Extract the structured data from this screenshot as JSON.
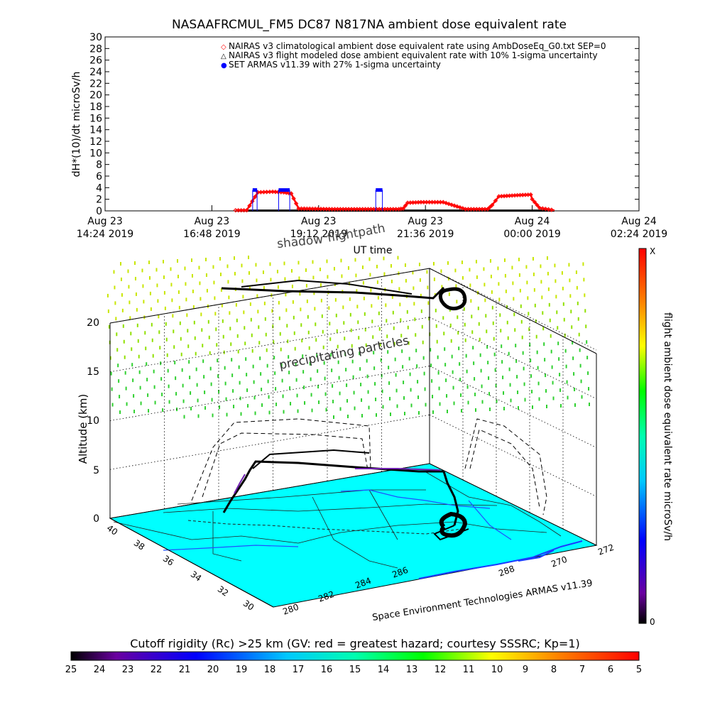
{
  "chart_data": [
    {
      "type": "line",
      "title": "NASAAFRCMUL_FM5 DC87 N817NA ambient dose equivalent rate",
      "ylabel": "dH*(10)/dt microSv/h",
      "xlabel": "UT time",
      "ylim": [
        0,
        30
      ],
      "yticks": [
        "30",
        "28",
        "26",
        "24",
        "22",
        "20",
        "18",
        "16",
        "14",
        "12",
        "10",
        "8",
        "6",
        "4",
        "2",
        "0"
      ],
      "xticks": [
        {
          "l1": "Aug 23",
          "l2": "14:24 2019"
        },
        {
          "l1": "Aug 23",
          "l2": "16:48 2019"
        },
        {
          "l1": "Aug 23",
          "l2": "19:12 2019"
        },
        {
          "l1": "Aug 23",
          "l2": "21:36 2019"
        },
        {
          "l1": "Aug 24",
          "l2": "00:00 2019"
        },
        {
          "l1": "Aug 24",
          "l2": "02:24 2019"
        }
      ],
      "legend": [
        {
          "marker": "◇",
          "color": "#ff0000",
          "text": "NAIRAS v3 climatological ambient dose equivalent rate using AmbDoseEq_G0.txt SEP=0"
        },
        {
          "marker": "△",
          "color": "#000000",
          "text": "NAIRAS v3 flight modeled dose ambient equivalent rate with 10% 1-sigma uncertainty"
        },
        {
          "marker": "●",
          "color": "#0000ff",
          "text": "SET ARMAS v11.39 with 27% 1-sigma uncertainty"
        }
      ],
      "legend_position": "top-right",
      "series": [
        {
          "name": "NAIRAS v3 climatological ambient dose equivalent rate using AmbDoseEq_G0.txt SEP=0",
          "color": "#ff0000",
          "x": [
            "17:20",
            "17:35",
            "17:50",
            "18:10",
            "18:25",
            "18:35",
            "18:45",
            "19:30",
            "20:30",
            "21:00",
            "21:06",
            "21:12",
            "21:30",
            "22:00",
            "22:30",
            "23:00",
            "23:06",
            "23:15",
            "23:40",
            "23:58",
            "24:00",
            "24:10",
            "24:30"
          ],
          "y": [
            0.1,
            0.1,
            3.2,
            3.3,
            3.2,
            3.0,
            0.4,
            0.3,
            0.3,
            0.3,
            0.4,
            1.4,
            1.5,
            1.5,
            0.3,
            0.3,
            1.0,
            2.5,
            2.7,
            2.8,
            2.0,
            0.5,
            0.1
          ]
        },
        {
          "name": "NAIRAS v3 flight modeled dose ambient equivalent rate with 10% 1-sigma uncertainty",
          "color": "#000000",
          "x": [
            "17:20",
            "24:30"
          ],
          "y": [
            0.05,
            0.05
          ]
        },
        {
          "name": "SET ARMAS v11.39 with 27% 1-sigma uncertainty",
          "color": "#0000ff",
          "x": [
            "17:43",
            "17:49",
            "18:18",
            "18:33",
            "20:29",
            "20:38"
          ],
          "y": [
            3.6,
            3.6,
            3.6,
            3.6,
            3.6,
            3.6
          ]
        }
      ]
    },
    {
      "type": "scatter",
      "zlabel": "Altitude (km)",
      "zticks": [
        "0",
        "5",
        "10",
        "15",
        "20"
      ],
      "lat_ticks": [
        "40",
        "38",
        "36",
        "34",
        "32",
        "30"
      ],
      "lon_ticks": [
        "280",
        "282",
        "284",
        "286",
        "288",
        "270",
        "272"
      ],
      "annotations": {
        "shadow": "shadow",
        "flightpath": "flightpath",
        "particles": "precipitating particles",
        "credit": "Space Environment Technologies ARMAS v11.39"
      },
      "right_colorbar": {
        "label": "flight ambient dose equivalent rate microSv/h",
        "top": "X",
        "bottom": "0"
      }
    }
  ],
  "bottom_colorbar": {
    "title": "Cutoff rigidity (Rc) >25 km (GV: red = greatest hazard; courtesy SSSRC; Kp=1)",
    "ticks": [
      "25",
      "24",
      "23",
      "22",
      "21",
      "20",
      "19",
      "18",
      "17",
      "16",
      "15",
      "14",
      "13",
      "12",
      "11",
      "10",
      "9",
      "8",
      "7",
      "6",
      "5"
    ]
  },
  "colors": {
    "ground": "#00ffff",
    "particles_top": "#c8e600",
    "particles_bottom": "#20d020"
  }
}
